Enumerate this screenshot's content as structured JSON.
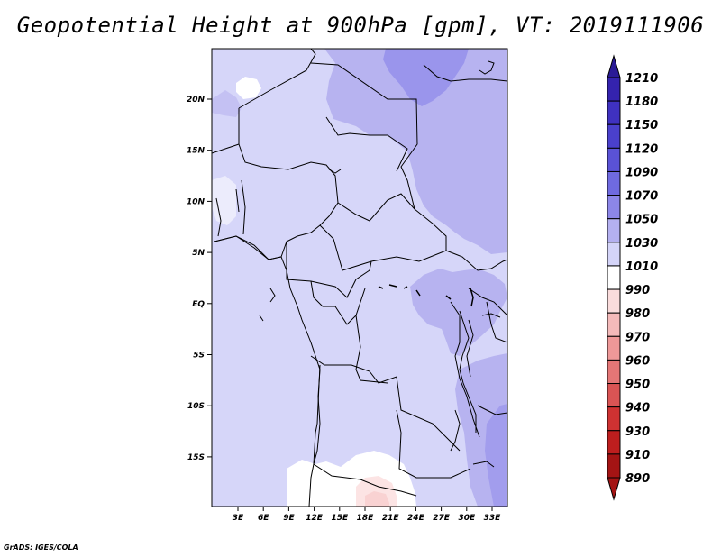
{
  "title": "Geopotential Height at 900hPa [gpm], VT: 2019111906",
  "credit": "GrADS: IGES/COLA",
  "map": {
    "lat_ticks": [
      "20N",
      "15N",
      "10N",
      "5N",
      "EQ",
      "5S",
      "10S",
      "15S"
    ],
    "lon_ticks": [
      "3E",
      "6E",
      "9E",
      "12E",
      "15E",
      "18E",
      "21E",
      "24E",
      "27E",
      "30E",
      "33E"
    ]
  },
  "colorbar": {
    "levels": [
      "1210",
      "1180",
      "1150",
      "1120",
      "1090",
      "1070",
      "1050",
      "1030",
      "1010",
      "990",
      "980",
      "970",
      "960",
      "950",
      "940",
      "930",
      "910",
      "890"
    ],
    "colors": [
      "#2a1a96",
      "#3423ae",
      "#3f31c0",
      "#4a40cc",
      "#5a52d6",
      "#6f6ae0",
      "#8c86e8",
      "#b4b0f0",
      "#d4d4f8",
      "#ffffff",
      "#fadcdc",
      "#f4baba",
      "#ee9898",
      "#e47676",
      "#da5454",
      "#ce3232",
      "#be1e1e",
      "#a41414"
    ]
  }
}
